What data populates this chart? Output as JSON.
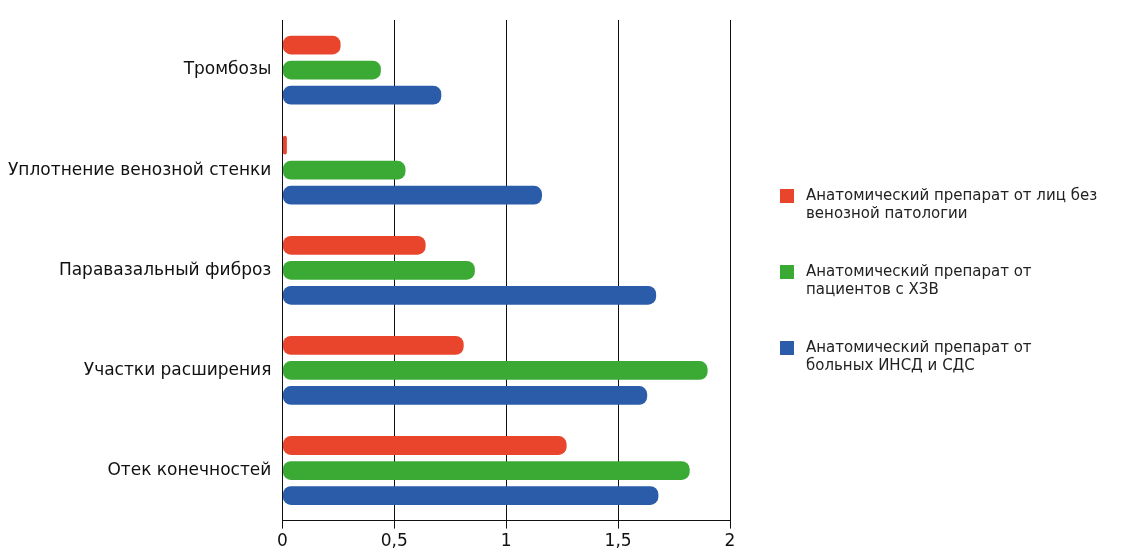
{
  "chart_data": {
    "type": "bar",
    "orientation": "horizontal",
    "categories": [
      "Тромбозы",
      "Уплотнение венозной стенки",
      "Паравазальный фиброз",
      "Участки расширения",
      "Отек конечностей"
    ],
    "series": [
      {
        "name": "Анатомический препарат от лиц без венозной патологии",
        "color": "#e8452c",
        "values": [
          0.26,
          0.02,
          0.64,
          0.81,
          1.27
        ]
      },
      {
        "name": "Анатомический препарат от пациентов с ХЗВ",
        "color": "#3aaa35",
        "values": [
          0.44,
          0.55,
          0.86,
          1.9,
          1.82
        ]
      },
      {
        "name": "Анатомический препарат от больных ИНСД и СДС",
        "color": "#2a5caa",
        "values": [
          0.71,
          1.16,
          1.67,
          1.63,
          1.68
        ]
      }
    ],
    "xlim": [
      0,
      2
    ],
    "xticks": [
      0,
      {
        "value": 0.5,
        "label": "0,5"
      },
      1,
      {
        "value": 1.5,
        "label": "1,5"
      },
      2
    ],
    "grid": "x",
    "legend": "right"
  }
}
